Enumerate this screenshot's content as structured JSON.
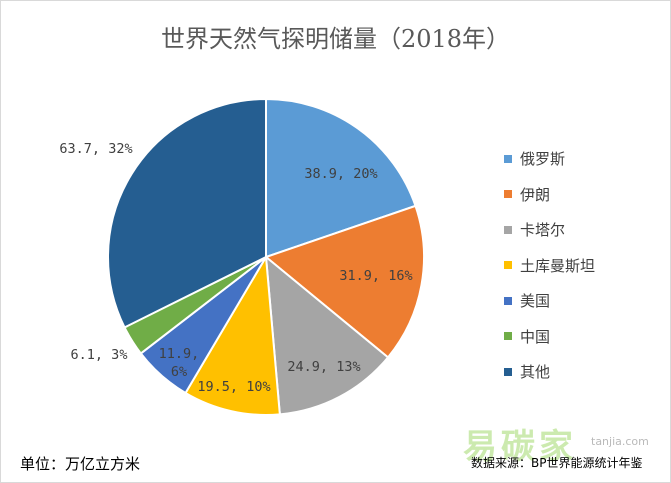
{
  "chart_data": {
    "type": "pie",
    "title": "世界天然气探明储量（2018年）",
    "unit_note": "单位：万亿立方米",
    "source_note": "数据来源：BP世界能源统计年鉴",
    "categories": [
      "俄罗斯",
      "伊朗",
      "卡塔尔",
      "土库曼斯坦",
      "美国",
      "中国",
      "其他"
    ],
    "values": [
      38.9,
      31.9,
      24.9,
      19.5,
      11.9,
      6.1,
      63.7
    ],
    "percents": [
      "20%",
      "16%",
      "13%",
      "10%",
      "6%",
      "3%",
      "32%"
    ],
    "labels": [
      [
        "38.9, 20%"
      ],
      [
        "31.9, 16%"
      ],
      [
        "24.9, 13%"
      ],
      [
        "19.5, 10%"
      ],
      [
        "11.9,",
        "6%"
      ],
      [
        "6.1, 3%"
      ],
      [
        "63.7, 32%"
      ]
    ],
    "colors": [
      "#5b9bd5",
      "#ed7d31",
      "#a5a5a5",
      "#ffc000",
      "#4472c4",
      "#70ad47",
      "#255e91"
    ],
    "legend_position": "right"
  },
  "watermark": {
    "text": "易碳家",
    "sub": "tanjia.com"
  }
}
